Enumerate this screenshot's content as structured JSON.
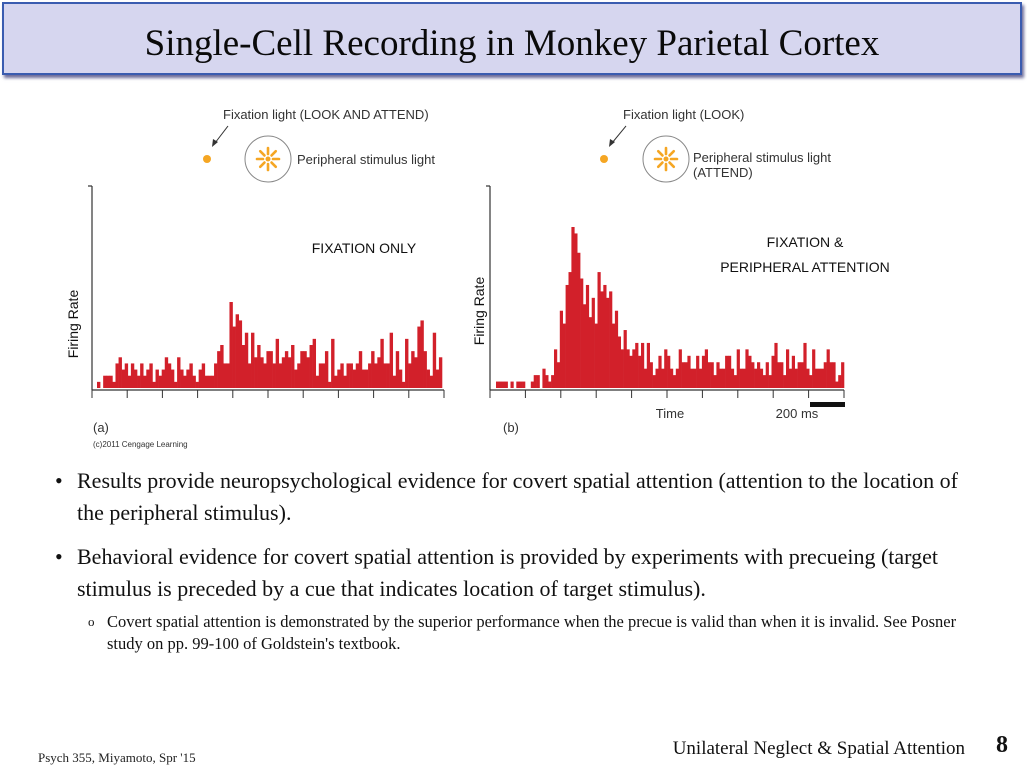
{
  "title": "Single-Cell Recording in Monkey Parietal Cortex",
  "figure": {
    "panel_a": {
      "fixation_label": "Fixation light (LOOK AND ATTEND)",
      "stimulus_label": "Peripheral stimulus light",
      "condition_label": "FIXATION ONLY",
      "ylabel": "Firing Rate",
      "panel_letter": "(a)",
      "copyright": "(c)2011 Cengage Learning"
    },
    "panel_b": {
      "fixation_label": "Fixation light (LOOK)",
      "stimulus_label_1": "Peripheral stimulus light",
      "stimulus_label_2": "(ATTEND)",
      "condition_label_1": "FIXATION &",
      "condition_label_2": "PERIPHERAL ATTENTION",
      "ylabel": "Firing Rate",
      "xlabel": "Time",
      "scale_label": "200 ms",
      "panel_letter": "(b)"
    },
    "colors": {
      "bar": "#d2202a",
      "fixation_dot": "#f5a623",
      "axis": "#333333"
    }
  },
  "chart_data": [
    {
      "type": "bar",
      "title": "FIXATION ONLY",
      "ylabel": "Firing Rate",
      "values": [
        1,
        0,
        2,
        2,
        2,
        1,
        4,
        5,
        3,
        4,
        2,
        4,
        3,
        2,
        4,
        2,
        3,
        4,
        1,
        3,
        2,
        3,
        5,
        4,
        3,
        1,
        5,
        3,
        2,
        3,
        4,
        2,
        1,
        3,
        4,
        2,
        2,
        2,
        4,
        6,
        7,
        4,
        4,
        14,
        10,
        12,
        11,
        7,
        9,
        4,
        9,
        5,
        7,
        5,
        4,
        6,
        6,
        4,
        8,
        4,
        5,
        6,
        5,
        7,
        3,
        4,
        6,
        6,
        5,
        7,
        8,
        2,
        4,
        4,
        6,
        1,
        8,
        2,
        3,
        4,
        2,
        4,
        4,
        3,
        4,
        6,
        3,
        3,
        4,
        6,
        4,
        5,
        8,
        4,
        4,
        9,
        2,
        6,
        3,
        1,
        8,
        4,
        6,
        5,
        10,
        11,
        6,
        3,
        2,
        9,
        3,
        5
      ]
    },
    {
      "type": "bar",
      "title": "FIXATION & PERIPHERAL ATTENTION",
      "xlabel": "Time",
      "ylabel": "Firing Rate",
      "scale_bar": "200 ms",
      "values": [
        1,
        1,
        1,
        1,
        0,
        1,
        0,
        1,
        1,
        1,
        0,
        0,
        1,
        2,
        2,
        0,
        3,
        2,
        1,
        2,
        6,
        4,
        12,
        10,
        16,
        18,
        25,
        24,
        21,
        17,
        13,
        16,
        11,
        14,
        10,
        18,
        15,
        16,
        14,
        15,
        10,
        12,
        8,
        6,
        9,
        6,
        5,
        6,
        7,
        5,
        7,
        3,
        7,
        4,
        2,
        3,
        5,
        3,
        6,
        5,
        3,
        2,
        3,
        6,
        4,
        4,
        5,
        3,
        3,
        5,
        3,
        5,
        6,
        4,
        4,
        2,
        4,
        3,
        3,
        5,
        5,
        3,
        2,
        6,
        3,
        3,
        6,
        5,
        4,
        3,
        4,
        3,
        2,
        4,
        2,
        5,
        7,
        4,
        4,
        2,
        6,
        3,
        5,
        3,
        4,
        4,
        7,
        3,
        2,
        6,
        3,
        3,
        3,
        4,
        6,
        4,
        4,
        1,
        2,
        4
      ]
    }
  ],
  "bullets": [
    "Results provide neuropsychological evidence for covert spatial attention (attention to the location of the peripheral stimulus).",
    "Behavioral evidence for covert spatial attention is provided by experiments with precueing (target stimulus is preceded by a cue that indicates location of target stimulus)."
  ],
  "subbullet": "Covert spatial attention is demonstrated by the superior performance when the precue is valid than when it is invalid.  See Posner study on pp. 99-100 of Goldstein's textbook.",
  "footer": {
    "course": "Psych 355, Miyamoto, Spr '15",
    "topic": "Unilateral Neglect & Spatial Attention",
    "page": "8"
  }
}
